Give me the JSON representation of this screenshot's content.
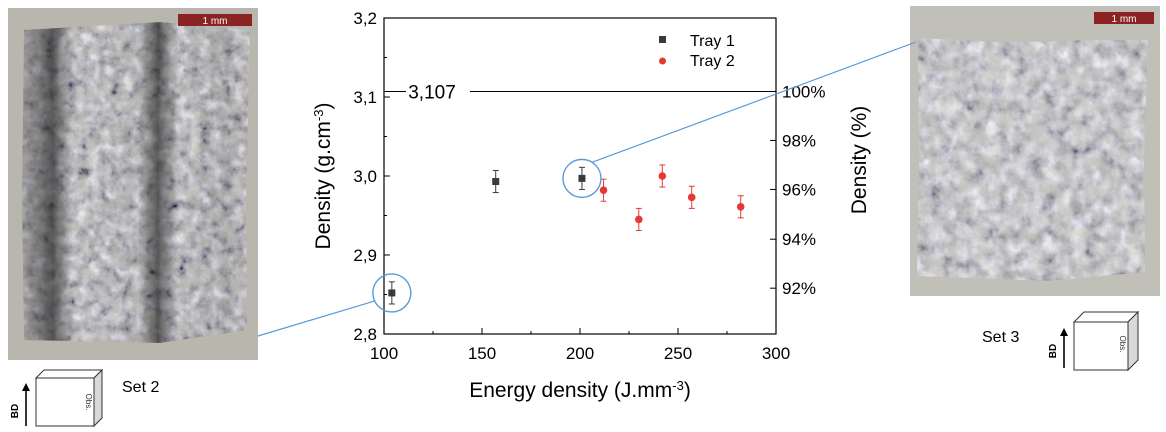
{
  "chart_data": {
    "type": "scatter",
    "xlabel": "Energy density (J.mm",
    "xlabel_sup": "-3",
    "xlabel_end": ")",
    "ylabel": "Density (g.cm",
    "ylabel_sup": "-3",
    "ylabel_end": ")",
    "y2label": "Density (%)",
    "xlim": [
      100,
      300
    ],
    "ylim": [
      2.8,
      3.2
    ],
    "x_ticks": [
      "100",
      "150",
      "200",
      "250",
      "300"
    ],
    "y_ticks": [
      "2,8",
      "2,9",
      "3,0",
      "3,1",
      "3,2"
    ],
    "y2_ticks": [
      "92%",
      "94%",
      "96%",
      "98%",
      "100%"
    ],
    "y2_tick_values": [
      2.858,
      2.92,
      2.983,
      3.045,
      3.107
    ],
    "reference_line": {
      "y": 3.107,
      "label": "3,107"
    },
    "legend_position": "top-right",
    "series": [
      {
        "name": "Tray 1",
        "marker": "square",
        "color": "#3a3a3a",
        "points": [
          {
            "x": 104,
            "y": 2.852,
            "err": 0.014
          },
          {
            "x": 157,
            "y": 2.993,
            "err": 0.014
          },
          {
            "x": 201,
            "y": 2.997,
            "err": 0.014
          }
        ]
      },
      {
        "name": "Tray 2",
        "marker": "circle",
        "color": "#e53935",
        "points": [
          {
            "x": 212,
            "y": 2.982,
            "err": 0.014
          },
          {
            "x": 230,
            "y": 2.945,
            "err": 0.014
          },
          {
            "x": 242,
            "y": 3.0,
            "err": 0.014
          },
          {
            "x": 257,
            "y": 2.973,
            "err": 0.014
          },
          {
            "x": 282,
            "y": 2.961,
            "err": 0.014
          }
        ]
      }
    ],
    "highlighted_points": [
      {
        "series": "Tray 1",
        "x": 104,
        "y": 2.852,
        "linked_image": "Set 2"
      },
      {
        "series": "Tray 1",
        "x": 201,
        "y": 2.997,
        "linked_image": "Set 3"
      }
    ]
  },
  "images": {
    "left": {
      "scale_label": "1 mm",
      "set_label": "Set 2",
      "cube_axis_label": "BD",
      "cube_face_label": "Obs."
    },
    "right": {
      "scale_label": "1 mm",
      "set_label": "Set 3",
      "cube_axis_label": "BD",
      "cube_face_label": "Obs."
    }
  },
  "colors": {
    "connector": "#5b9bd5",
    "scale_bar": "#8b2323",
    "tray1": "#3a3a3a",
    "tray2": "#e53935"
  }
}
